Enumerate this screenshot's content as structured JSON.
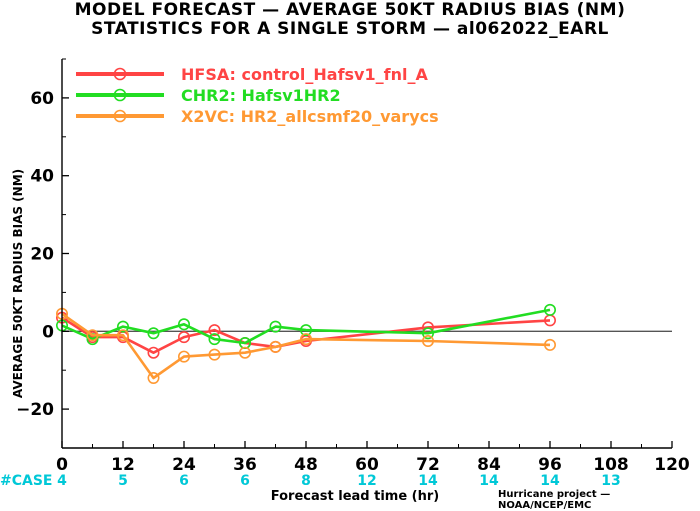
{
  "title_line1": "MODEL FORECAST — AVERAGE 50KT RADIUS BIAS (NM)",
  "title_line2": "STATISTICS FOR A SINGLE STORM — al062022_EARL",
  "credit": "Hurricane project — NOAA/NCEP/EMC",
  "case_label": "#CASE",
  "case_color": "#00c8d7",
  "chart_data": {
    "type": "line",
    "xlabel": "Forecast lead time (hr)",
    "ylabel": "AVERAGE 50KT RADIUS BIAS (NM)",
    "xlim": [
      0,
      120
    ],
    "ylim": [
      -30,
      70
    ],
    "xticks": [
      0,
      12,
      24,
      36,
      48,
      60,
      72,
      84,
      96,
      108,
      120
    ],
    "yticks": [
      -20,
      0,
      20,
      40,
      60
    ],
    "ytick_labels": [
      "−20",
      "0",
      "20",
      "40",
      "60"
    ],
    "zero_line": true,
    "legend_position": "top-left",
    "cases": [
      {
        "x": 0,
        "n": "4"
      },
      {
        "x": 12,
        "n": "5"
      },
      {
        "x": 24,
        "n": "6"
      },
      {
        "x": 36,
        "n": "6"
      },
      {
        "x": 48,
        "n": "8"
      },
      {
        "x": 60,
        "n": "12"
      },
      {
        "x": 72,
        "n": "14"
      },
      {
        "x": 84,
        "n": "14"
      },
      {
        "x": 96,
        "n": "14"
      },
      {
        "x": 108,
        "n": "13"
      }
    ],
    "series": [
      {
        "name": "HFSA: control_Hafsv1_fnl_A",
        "color": "#ff4444",
        "x": [
          0,
          6,
          12,
          18,
          24,
          30,
          36,
          42,
          48,
          72,
          96
        ],
        "y": [
          3.5,
          -1.5,
          -1.5,
          -5.5,
          -1.5,
          0.3,
          -3.0,
          -4.0,
          -2.5,
          1.0,
          2.8
        ]
      },
      {
        "name": "CHR2: Hafsv1HR2",
        "color": "#22dd22",
        "x": [
          0,
          6,
          12,
          18,
          24,
          30,
          36,
          42,
          48,
          72,
          96
        ],
        "y": [
          1.5,
          -2.0,
          1.2,
          -0.5,
          1.8,
          -2.0,
          -3.0,
          1.2,
          0.3,
          -0.5,
          5.5
        ]
      },
      {
        "name": "X2VC: HR2_allcsmf20_varycs",
        "color": "#ff9933",
        "x": [
          0,
          6,
          12,
          18,
          24,
          30,
          36,
          42,
          48,
          72,
          96
        ],
        "y": [
          4.5,
          -1.0,
          -1.0,
          -12.0,
          -6.5,
          -6.0,
          -5.5,
          -4.0,
          -2.0,
          -2.5,
          -3.5
        ]
      }
    ]
  }
}
